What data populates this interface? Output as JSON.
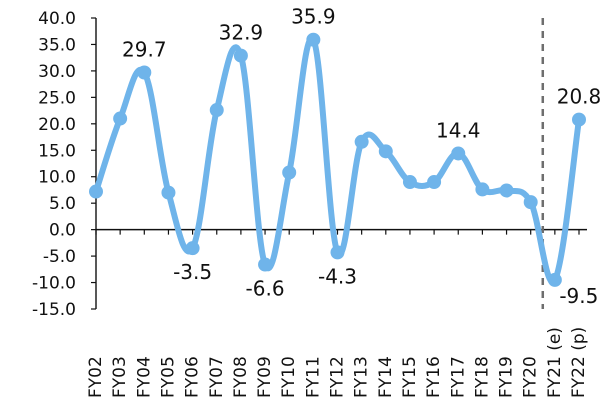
{
  "chart_data": {
    "type": "line",
    "categories": [
      "FY02",
      "FY03",
      "FY04",
      "FY05",
      "FY06",
      "FY07",
      "FY08",
      "FY09",
      "FY10",
      "FY11",
      "FY12",
      "FY13",
      "FY14",
      "FY15",
      "FY16",
      "FY17",
      "FY18",
      "FY19",
      "FY20",
      "FY21 (e)",
      "FY22 (p)"
    ],
    "series": [
      {
        "values": [
          7.2,
          21.0,
          29.7,
          7.0,
          -3.5,
          22.6,
          32.9,
          -6.6,
          10.8,
          35.9,
          -4.3,
          16.6,
          14.8,
          9.0,
          9.0,
          14.4,
          7.6,
          7.4,
          5.2,
          -9.5,
          20.8
        ]
      }
    ],
    "data_labels": [
      {
        "index": 2,
        "text": "29.7",
        "position": "above"
      },
      {
        "index": 4,
        "text": "-3.5",
        "position": "below"
      },
      {
        "index": 6,
        "text": "32.9",
        "position": "above"
      },
      {
        "index": 7,
        "text": "-6.6",
        "position": "below"
      },
      {
        "index": 9,
        "text": "35.9",
        "position": "above"
      },
      {
        "index": 10,
        "text": "-4.3",
        "position": "below"
      },
      {
        "index": 15,
        "text": "14.4",
        "position": "above"
      },
      {
        "index": 19,
        "text": "-9.5",
        "position": "right"
      },
      {
        "index": 20,
        "text": "20.8",
        "position": "above"
      }
    ],
    "y_ticks": [
      "40.0",
      "35.0",
      "30.0",
      "25.0",
      "20.0",
      "15.0",
      "10.0",
      "5.0",
      "0.0",
      "-5.0",
      "-10.0",
      "-15.0"
    ],
    "ylim": [
      -15,
      40
    ],
    "grid": false,
    "divider_after_category": "FY20",
    "colors": {
      "line": "#6FB4EA",
      "divider": "#6E6E6E",
      "axis": "#111111"
    }
  }
}
